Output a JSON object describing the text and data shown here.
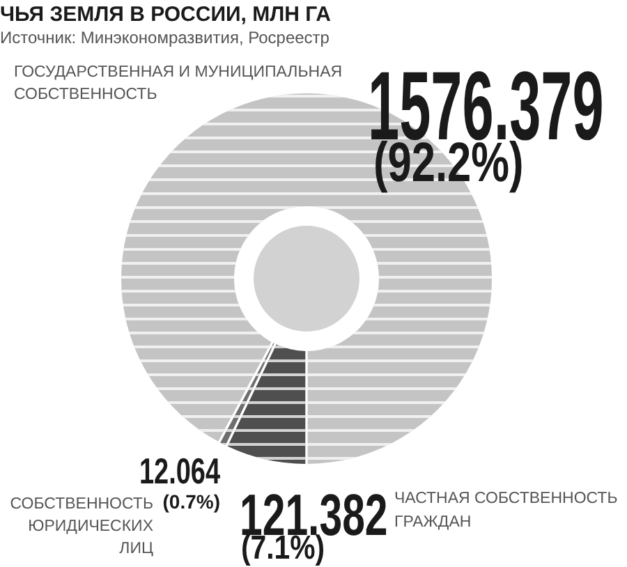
{
  "chart_data": {
    "type": "donut",
    "title": "ЧЬЯ ЗЕМЛЯ В РОССИИ, МЛН ГА",
    "subtitle": "Источник: Минэкономразвития, Росреестр",
    "categories": [
      "ГОСУДАРСТВЕННАЯ И МУНИЦИПАЛЬНАЯ СОБСТВЕННОСТЬ",
      "ЧАСТНАЯ СОБСТВЕННОСТЬ ГРАЖДАН",
      "СОБСТВЕННОСТЬ ЮРИДИЧЕСКИХ ЛИЦ"
    ],
    "values": [
      1576.379,
      121.382,
      12.064
    ],
    "colors": [
      "#c4c4c4",
      "#4f4f4f",
      "#6e6e6e"
    ],
    "value_labels": [
      "1576.379 (92.2%)",
      "121.382 (7.1%)",
      "12.064 (0.7%)"
    ]
  }
}
